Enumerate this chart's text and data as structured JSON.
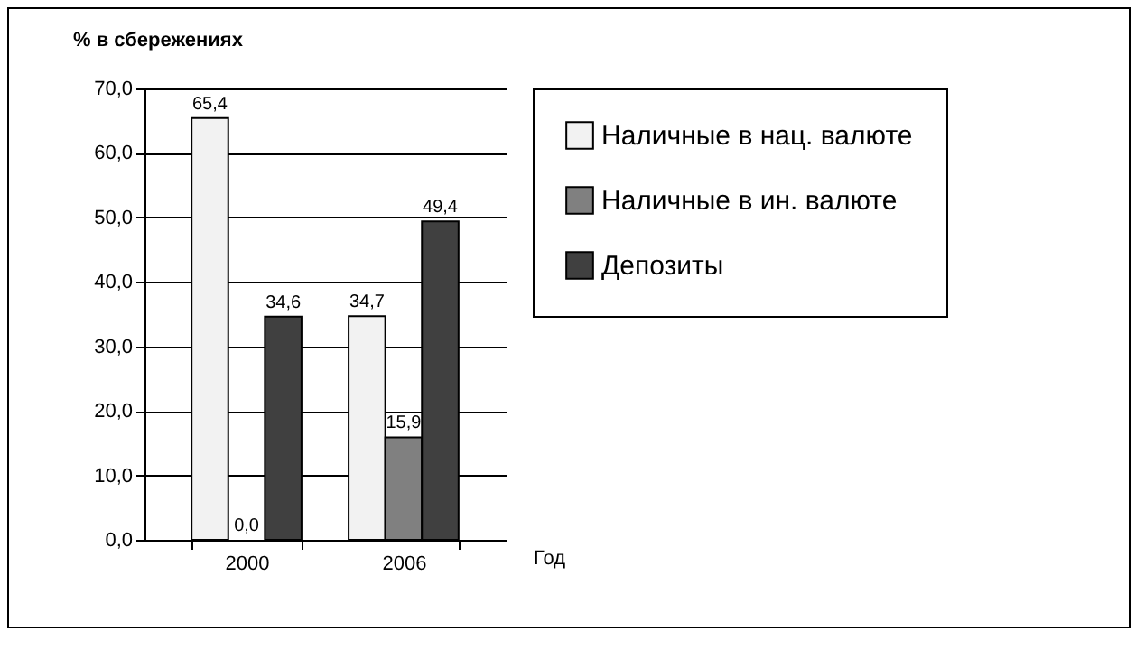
{
  "chart_data": {
    "type": "bar",
    "ylabel": "% в сбережениях",
    "xlabel": "Год",
    "categories": [
      "2000",
      "2006"
    ],
    "series": [
      {
        "name": "Наличные в нац. валюте",
        "color": "#f2f2f2",
        "values": [
          65.4,
          34.7
        ],
        "value_labels": [
          "65,4",
          "34,7"
        ]
      },
      {
        "name": "Наличные в ин. валюте",
        "color": "#808080",
        "values": [
          0.0,
          15.9
        ],
        "value_labels": [
          "0,0",
          "15,9"
        ]
      },
      {
        "name": "Депозиты",
        "color": "#404040",
        "values": [
          34.6,
          49.4
        ],
        "value_labels": [
          "34,6",
          "49,4"
        ]
      }
    ],
    "ylim": [
      0,
      70
    ],
    "yticks": [
      {
        "value": 0,
        "label": "0,0"
      },
      {
        "value": 10,
        "label": "10,0"
      },
      {
        "value": 20,
        "label": "20,0"
      },
      {
        "value": 30,
        "label": "30,0"
      },
      {
        "value": 40,
        "label": "40,0"
      },
      {
        "value": 50,
        "label": "50,0"
      },
      {
        "value": 60,
        "label": "60,0"
      },
      {
        "value": 70,
        "label": "70,0"
      }
    ],
    "grid": "y",
    "legend": "right"
  }
}
